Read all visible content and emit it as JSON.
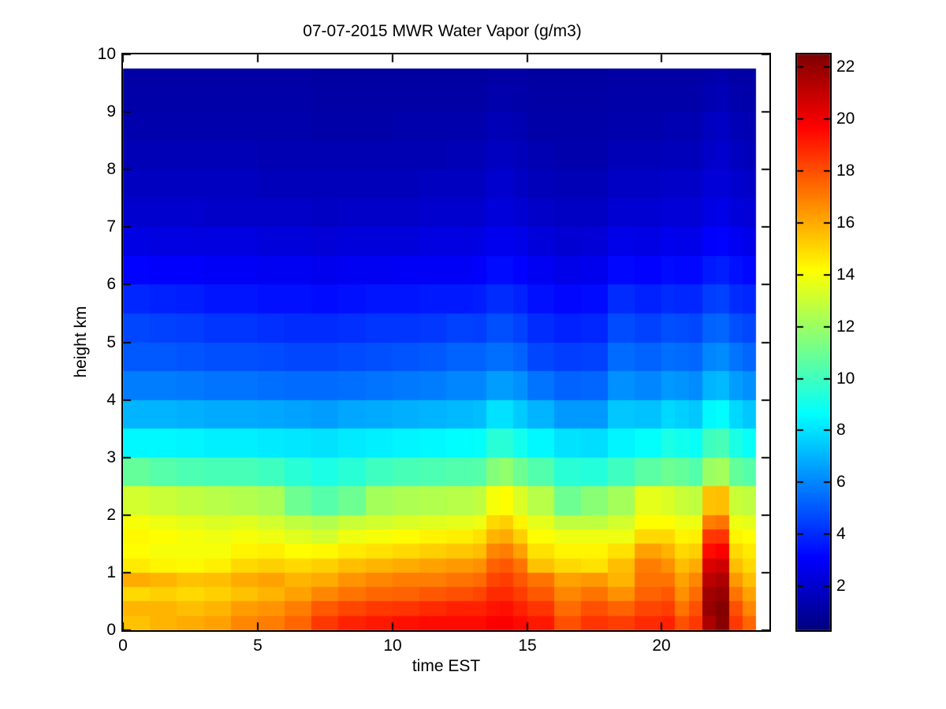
{
  "figure": {
    "background": "#ffffff"
  },
  "chart_data": {
    "type": "heatmap",
    "title": "07-07-2015 MWR Water Vapor (g/m3)",
    "xlabel": "time EST",
    "ylabel": "height km",
    "xlim": [
      0,
      24
    ],
    "ylim": [
      0,
      10
    ],
    "x_ticks": [
      0,
      5,
      10,
      15,
      20
    ],
    "y_ticks": [
      0,
      1,
      2,
      3,
      4,
      5,
      6,
      7,
      8,
      9,
      10
    ],
    "grid": false,
    "colormap": "jet",
    "clim": [
      0.3,
      22.5
    ],
    "colorbar_position": "right",
    "colorbar_ticks": [
      2,
      4,
      6,
      8,
      10,
      12,
      14,
      16,
      18,
      20,
      22
    ],
    "column_time_edges_hours": [
      0,
      1,
      2,
      3,
      4,
      5,
      6,
      7,
      8,
      9,
      10,
      11,
      12,
      13,
      13.5,
      14,
      14.5,
      15,
      16,
      17,
      18,
      19,
      20,
      20.5,
      21,
      21.5,
      22,
      22.5,
      23,
      23.5
    ],
    "row_height_edges_km": [
      0,
      0.25,
      0.5,
      0.75,
      1,
      1.25,
      1.5,
      1.75,
      2,
      2.5,
      3,
      3.5,
      4,
      4.5,
      5,
      5.5,
      6,
      6.5,
      7,
      7.5,
      8,
      8.5,
      9,
      9.5,
      9.75
    ],
    "values_by_column": [
      [
        15.5,
        15.8,
        15.0,
        16.0,
        14.6,
        14.2,
        14.3,
        14.0,
        13.2,
        10.8,
        8.5,
        7.0,
        5.8,
        5.0,
        4.6,
        3.9,
        3.1,
        2.5,
        2.0,
        1.7,
        1.5,
        1.3,
        1.2,
        1.1
      ],
      [
        15.8,
        15.8,
        15.2,
        15.8,
        14.4,
        14.0,
        14.2,
        13.8,
        13.0,
        10.5,
        8.5,
        7.0,
        5.8,
        5.0,
        4.5,
        3.8,
        3.0,
        2.4,
        2.0,
        1.7,
        1.5,
        1.3,
        1.2,
        1.1
      ],
      [
        16.0,
        15.6,
        15.0,
        15.5,
        14.3,
        14.0,
        14.0,
        13.6,
        12.8,
        10.3,
        8.4,
        6.9,
        5.7,
        4.9,
        4.4,
        3.7,
        3.0,
        2.4,
        2.0,
        1.7,
        1.5,
        1.3,
        1.2,
        1.1
      ],
      [
        16.2,
        15.8,
        15.2,
        15.6,
        14.5,
        14.0,
        13.8,
        13.4,
        12.6,
        10.2,
        8.3,
        6.8,
        5.6,
        4.8,
        4.2,
        3.5,
        2.9,
        2.4,
        1.9,
        1.7,
        1.5,
        1.3,
        1.2,
        1.1
      ],
      [
        16.8,
        16.3,
        15.5,
        16.0,
        15.0,
        14.4,
        14.0,
        13.5,
        12.5,
        10.2,
        8.3,
        6.8,
        5.6,
        4.8,
        4.2,
        3.5,
        2.9,
        2.4,
        1.9,
        1.7,
        1.5,
        1.3,
        1.2,
        1.1
      ],
      [
        17.0,
        16.5,
        15.8,
        16.2,
        15.2,
        14.5,
        13.8,
        13.2,
        12.3,
        10.0,
        8.2,
        6.7,
        5.5,
        4.7,
        4.1,
        3.4,
        2.8,
        2.3,
        1.9,
        1.6,
        1.4,
        1.3,
        1.2,
        1.1
      ],
      [
        17.5,
        17.0,
        16.2,
        15.8,
        15.0,
        14.2,
        13.5,
        12.8,
        11.0,
        9.5,
        8.1,
        6.6,
        5.4,
        4.6,
        4.0,
        3.4,
        2.8,
        2.3,
        1.9,
        1.6,
        1.4,
        1.3,
        1.2,
        1.1
      ],
      [
        18.5,
        17.8,
        16.8,
        16.0,
        15.2,
        14.3,
        13.2,
        12.5,
        10.5,
        9.2,
        8.0,
        6.5,
        5.4,
        4.6,
        4.0,
        3.3,
        2.7,
        2.2,
        1.8,
        1.6,
        1.4,
        1.2,
        1.1,
        1.0
      ],
      [
        19.0,
        18.2,
        17.2,
        16.5,
        15.6,
        14.6,
        13.8,
        13.0,
        11.0,
        9.5,
        8.2,
        6.7,
        5.5,
        4.7,
        4.1,
        3.4,
        2.8,
        2.3,
        1.9,
        1.6,
        1.4,
        1.2,
        1.1,
        1.0
      ],
      [
        19.2,
        18.5,
        17.5,
        16.8,
        15.8,
        14.8,
        14.0,
        13.2,
        12.2,
        10.0,
        8.3,
        6.8,
        5.6,
        4.8,
        4.2,
        3.5,
        2.8,
        2.3,
        1.9,
        1.6,
        1.4,
        1.2,
        1.1,
        1.0
      ],
      [
        19.4,
        18.6,
        17.6,
        17.0,
        16.0,
        15.0,
        14.2,
        13.4,
        12.4,
        10.2,
        8.4,
        6.9,
        5.7,
        4.9,
        4.2,
        3.5,
        2.9,
        2.3,
        1.9,
        1.6,
        1.4,
        1.3,
        1.1,
        1.0
      ],
      [
        19.5,
        18.8,
        17.8,
        17.0,
        16.2,
        15.2,
        14.4,
        13.5,
        12.5,
        10.3,
        8.5,
        7.0,
        5.8,
        5.0,
        4.3,
        3.6,
        2.9,
        2.4,
        2.0,
        1.7,
        1.4,
        1.3,
        1.1,
        1.0
      ],
      [
        19.5,
        19.0,
        18.0,
        17.2,
        16.4,
        15.4,
        14.5,
        13.6,
        12.6,
        10.4,
        8.6,
        7.1,
        6.0,
        5.2,
        4.5,
        3.6,
        2.9,
        2.4,
        2.0,
        1.7,
        1.5,
        1.3,
        1.1,
        1.0
      ],
      [
        19.5,
        19.0,
        18.2,
        17.4,
        16.6,
        15.6,
        14.8,
        13.8,
        12.8,
        10.5,
        8.7,
        7.2,
        6.0,
        5.2,
        4.4,
        3.7,
        3.0,
        2.5,
        2.0,
        1.7,
        1.5,
        1.3,
        1.1,
        1.0
      ],
      [
        19.8,
        19.3,
        18.8,
        18.2,
        17.6,
        16.8,
        15.8,
        15.0,
        14.0,
        11.5,
        9.5,
        8.0,
        6.5,
        5.5,
        4.8,
        4.0,
        3.3,
        2.7,
        2.3,
        2.0,
        1.7,
        1.5,
        1.3,
        1.1
      ],
      [
        19.8,
        19.4,
        18.8,
        18.4,
        17.8,
        17.0,
        16.0,
        15.2,
        14.2,
        11.8,
        9.5,
        8.0,
        6.5,
        5.5,
        4.8,
        4.0,
        3.3,
        2.7,
        2.3,
        2.0,
        1.7,
        1.5,
        1.3,
        1.1
      ],
      [
        19.5,
        19.0,
        18.4,
        17.8,
        17.2,
        16.2,
        15.2,
        14.4,
        13.4,
        11.0,
        9.0,
        7.5,
        6.2,
        5.2,
        4.5,
        3.8,
        3.1,
        2.6,
        2.1,
        1.8,
        1.6,
        1.4,
        1.2,
        1.1
      ],
      [
        19.2,
        18.6,
        17.8,
        17.2,
        15.5,
        14.8,
        14.2,
        13.6,
        12.6,
        10.4,
        8.5,
        7.0,
        5.6,
        4.6,
        4.0,
        3.4,
        2.8,
        2.3,
        1.9,
        1.6,
        1.4,
        1.2,
        1.1,
        1.0
      ],
      [
        18.0,
        17.4,
        16.8,
        16.2,
        15.0,
        14.4,
        13.8,
        12.8,
        11.0,
        9.5,
        8.0,
        6.4,
        5.2,
        4.4,
        3.8,
        3.2,
        2.6,
        2.1,
        1.8,
        1.5,
        1.3,
        1.2,
        1.1,
        1.0
      ],
      [
        18.6,
        18.0,
        17.2,
        16.4,
        14.8,
        14.4,
        13.8,
        12.8,
        11.6,
        9.4,
        7.9,
        6.4,
        5.3,
        4.5,
        3.9,
        3.3,
        2.7,
        2.2,
        1.8,
        1.5,
        1.3,
        1.2,
        1.1,
        1.0
      ],
      [
        18.4,
        17.6,
        16.6,
        15.8,
        15.6,
        14.8,
        13.8,
        13.2,
        12.2,
        10.0,
        8.4,
        7.4,
        6.2,
        5.4,
        4.7,
        4.0,
        3.2,
        2.6,
        2.1,
        1.8,
        1.5,
        1.3,
        1.2,
        1.1
      ],
      [
        18.8,
        18.2,
        17.6,
        17.2,
        17.0,
        16.2,
        15.0,
        14.2,
        13.6,
        10.6,
        8.7,
        7.3,
        6.0,
        5.2,
        4.5,
        3.8,
        3.1,
        2.5,
        2.1,
        1.8,
        1.5,
        1.3,
        1.2,
        1.1
      ],
      [
        19.0,
        18.4,
        17.8,
        17.2,
        16.6,
        15.8,
        15.0,
        14.2,
        13.4,
        11.0,
        9.2,
        7.8,
        6.4,
        5.5,
        4.8,
        4.0,
        3.3,
        2.7,
        2.2,
        1.9,
        1.6,
        1.4,
        1.2,
        1.1
      ],
      [
        18.0,
        17.2,
        16.6,
        16.2,
        15.6,
        15.0,
        14.4,
        13.8,
        13.0,
        10.8,
        9.0,
        7.6,
        6.3,
        5.4,
        4.7,
        3.9,
        3.2,
        2.6,
        2.2,
        1.9,
        1.6,
        1.4,
        1.2,
        1.1
      ],
      [
        18.5,
        18.0,
        17.4,
        16.8,
        16.0,
        15.2,
        14.5,
        13.8,
        12.8,
        10.4,
        8.8,
        7.4,
        6.1,
        5.3,
        4.6,
        3.9,
        3.2,
        2.6,
        2.2,
        1.9,
        1.6,
        1.4,
        1.2,
        1.1
      ],
      [
        21.5,
        22.0,
        21.8,
        21.2,
        20.5,
        19.5,
        18.5,
        17.0,
        15.5,
        12.0,
        10.0,
        8.5,
        7.0,
        6.0,
        5.2,
        4.4,
        3.6,
        3.0,
        2.5,
        2.2,
        1.9,
        1.7,
        1.4,
        1.2
      ],
      [
        22.3,
        22.4,
        22.0,
        21.5,
        20.8,
        19.8,
        18.6,
        17.2,
        15.6,
        12.2,
        10.2,
        8.6,
        7.1,
        6.1,
        5.3,
        4.5,
        3.7,
        3.1,
        2.6,
        2.2,
        2.0,
        1.8,
        1.5,
        1.3
      ],
      [
        18.5,
        18.0,
        17.2,
        16.4,
        15.6,
        15.0,
        14.4,
        13.8,
        13.0,
        10.8,
        9.2,
        7.8,
        6.5,
        5.6,
        4.8,
        4.0,
        3.4,
        2.8,
        2.3,
        2.0,
        1.7,
        1.5,
        1.3,
        1.1
      ],
      [
        17.5,
        16.8,
        16.2,
        15.6,
        15.0,
        14.6,
        14.2,
        13.6,
        12.8,
        10.5,
        8.8,
        7.4,
        6.2,
        5.3,
        4.6,
        3.9,
        3.2,
        2.6,
        2.2,
        1.9,
        1.6,
        1.4,
        1.2,
        1.1
      ]
    ]
  }
}
